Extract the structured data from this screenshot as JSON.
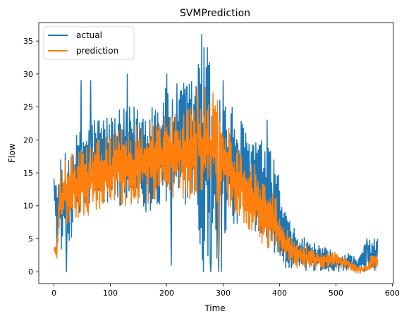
{
  "chart_data": {
    "type": "line",
    "title": "SVMPrediction",
    "xlabel": "Time",
    "ylabel": "Flow",
    "xlim": [
      -27,
      602
    ],
    "ylim": [
      -1.8,
      37.8
    ],
    "xticks": [
      0,
      100,
      200,
      300,
      400,
      500,
      600
    ],
    "yticks": [
      0,
      5,
      10,
      15,
      20,
      25,
      30,
      35
    ],
    "grid": false,
    "legend": "top-left",
    "n_points": 575,
    "series": [
      {
        "name": "actual",
        "color": "#1f77b4",
        "envelope_x": [
          0,
          5,
          10,
          20,
          30,
          50,
          75,
          100,
          130,
          160,
          200,
          230,
          250,
          260,
          270,
          285,
          300,
          320,
          340,
          360,
          380,
          395,
          410,
          430,
          450,
          470,
          500,
          520,
          540,
          555,
          565,
          575
        ],
        "upper": [
          15,
          13,
          17,
          18,
          20,
          22,
          24,
          24,
          25,
          26,
          28,
          29,
          30,
          36,
          34,
          31,
          27,
          25,
          22,
          21,
          19,
          17,
          9,
          6,
          5,
          4,
          3,
          3,
          2,
          5,
          5,
          5
        ],
        "lower": [
          13,
          2,
          4,
          0.5,
          5,
          9,
          10,
          10,
          10,
          9,
          10,
          10,
          11,
          1,
          0,
          0,
          5,
          7,
          7,
          6,
          5,
          2,
          0.5,
          0.5,
          0,
          0,
          0,
          0,
          0,
          0,
          0,
          0
        ],
        "spikes": [
          [
            22,
            0
          ],
          [
            48,
            29
          ],
          [
            65,
            29
          ],
          [
            130,
            30
          ],
          [
            200,
            30
          ],
          [
            208,
            1
          ],
          [
            235,
            28
          ],
          [
            262,
            36
          ],
          [
            265,
            0
          ],
          [
            272,
            34
          ],
          [
            278,
            0
          ],
          [
            292,
            0
          ],
          [
            297,
            0
          ],
          [
            300,
            29
          ],
          [
            378,
            23
          ],
          [
            410,
            9
          ],
          [
            555,
            5
          ],
          [
            568,
            5
          ]
        ]
      },
      {
        "name": "prediction",
        "color": "#ff7f0e",
        "envelope_x": [
          0,
          5,
          10,
          20,
          30,
          50,
          75,
          100,
          130,
          160,
          200,
          230,
          250,
          260,
          270,
          285,
          300,
          320,
          340,
          360,
          380,
          395,
          410,
          430,
          450,
          470,
          500,
          520,
          540,
          555,
          565,
          575
        ],
        "upper": [
          4,
          4,
          15,
          17,
          18,
          19,
          20,
          21,
          22,
          23,
          24,
          25,
          25,
          27,
          28,
          27,
          25,
          20,
          18,
          16,
          13,
          12,
          7,
          5,
          4,
          3,
          3,
          2,
          1,
          1,
          3,
          3
        ],
        "lower": [
          3,
          2,
          6,
          6,
          7,
          8,
          9,
          10,
          10,
          10,
          11,
          11,
          11,
          11,
          11,
          10,
          10,
          9,
          7,
          5,
          3,
          2,
          1,
          0.5,
          0.5,
          0.5,
          0.5,
          0.5,
          -0.3,
          0,
          0.5,
          0.5
        ],
        "spikes": [
          [
            255,
            28
          ],
          [
            268,
            28
          ],
          [
            292,
            2
          ]
        ]
      }
    ]
  }
}
